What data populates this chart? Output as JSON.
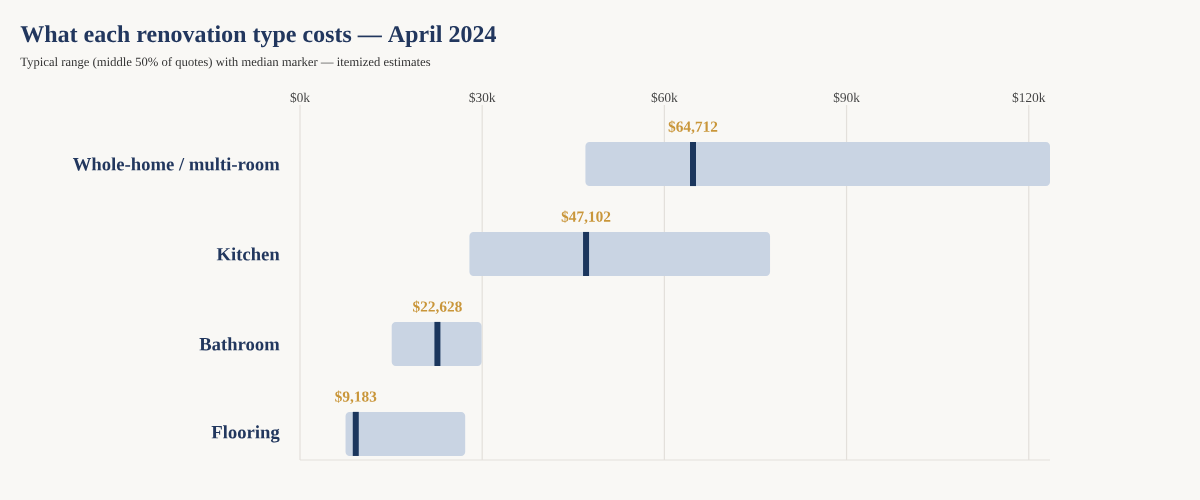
{
  "chart_data": {
    "type": "box",
    "orientation": "horizontal",
    "title": "What each renovation type costs — April 2024",
    "subtitle": "Typical range (middle 50% of quotes) with median marker — itemized estimates",
    "categories": [
      "Whole-home / multi-room",
      "Kitchen",
      "Bathroom",
      "Flooring"
    ],
    "series": [
      {
        "color": "#c9d4e3",
        "boxes": [
          {
            "low": 47000,
            "q1": 47000,
            "median": 64712,
            "q3": 123500,
            "high": 123500
          },
          {
            "low": 27900,
            "q1": 27900,
            "median": 47102,
            "q3": 77400,
            "high": 77400
          },
          {
            "low": 15100,
            "q1": 15100,
            "median": 22628,
            "q3": 29900,
            "high": 29900
          },
          {
            "low": 7500,
            "q1": 7500,
            "median": 9183,
            "q3": 27200,
            "high": 27200
          }
        ]
      }
    ],
    "annotations": [
      {
        "text": "$64,712",
        "x": 64712,
        "y": "Whole-home / multi-room"
      },
      {
        "text": "$47,102",
        "x": 47102,
        "y": "Kitchen"
      },
      {
        "text": "$22,628",
        "x": 22628,
        "y": "Bathroom"
      },
      {
        "text": "$9,183",
        "x": 9183,
        "y": "Flooring"
      }
    ],
    "xlim": [
      0,
      123500
    ],
    "xticks": [
      {
        "value": 0,
        "label": "$0k"
      },
      {
        "value": 30000,
        "label": "$30k"
      },
      {
        "value": 60000,
        "label": "$60k"
      },
      {
        "value": 90000,
        "label": "$90k"
      },
      {
        "value": 120000,
        "label": "$120k"
      }
    ],
    "grid": "x"
  }
}
